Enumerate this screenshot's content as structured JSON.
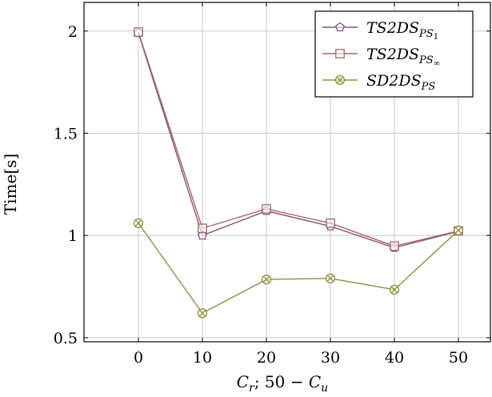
{
  "chart_data": {
    "type": "line",
    "xlabel": "C_r; 50 − C_u",
    "ylabel": "Time[s]",
    "x": [
      0,
      10,
      20,
      30,
      40,
      50
    ],
    "xticks": [
      "0",
      "10",
      "20",
      "30",
      "40",
      "50"
    ],
    "yticks": [
      "0.5",
      "1",
      "1.5",
      "2"
    ],
    "ytick_values": [
      0.5,
      1,
      1.5,
      2
    ],
    "xlim": [
      -8.5,
      55
    ],
    "ylim": [
      0.48,
      2.14
    ],
    "grid": true,
    "legend_position": "top-right",
    "series": [
      {
        "name": "TS2DS_PS1",
        "legend_main": "TS2DS",
        "legend_sub": "PS",
        "legend_subsub": "1",
        "color": "#8a5076",
        "marker": "pentagon",
        "values": [
          1.99,
          1.0,
          1.12,
          1.045,
          0.94,
          1.02
        ]
      },
      {
        "name": "TS2DS_PS∞",
        "legend_main": "TS2DS",
        "legend_sub": "PS",
        "legend_subsub": "∞",
        "color": "#a06a6a",
        "marker": "square",
        "values": [
          1.995,
          1.035,
          1.13,
          1.06,
          0.948,
          1.022
        ]
      },
      {
        "name": "SD2DS_PS",
        "legend_main": "SD2DS",
        "legend_sub": "PS",
        "legend_subsub": "",
        "color": "#8f8f40",
        "marker": "otimes",
        "values": [
          1.06,
          0.62,
          0.785,
          0.79,
          0.735,
          1.025
        ]
      }
    ]
  }
}
